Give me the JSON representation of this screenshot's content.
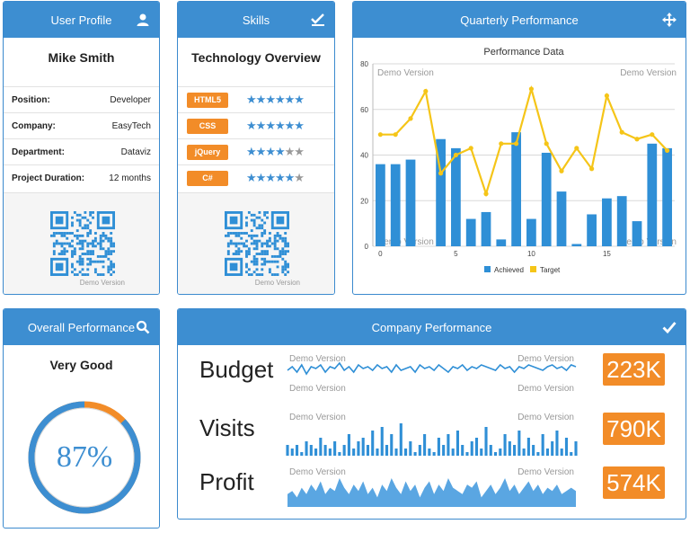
{
  "user_profile": {
    "title": "User Profile",
    "name": "Mike Smith",
    "rows": [
      {
        "key": "Position:",
        "value": "Developer"
      },
      {
        "key": "Company:",
        "value": "EasyTech"
      },
      {
        "key": "Department:",
        "value": "Dataviz"
      },
      {
        "key": "Project Duration:",
        "value": "12 months"
      }
    ],
    "demo_text": "Demo Version"
  },
  "skills": {
    "title": "Skills",
    "heading": "Technology Overview",
    "items": [
      {
        "label": "HTML5",
        "rating": 5.5
      },
      {
        "label": "CSS",
        "rating": 5.5
      },
      {
        "label": "jQuery",
        "rating": 4
      },
      {
        "label": "C#",
        "rating": 4.5
      }
    ],
    "demo_text": "Demo Version"
  },
  "quarterly": {
    "title": "Quarterly Performance",
    "chart_data": {
      "type": "bar",
      "title": "Performance Data",
      "x": [
        0,
        1,
        2,
        3,
        4,
        5,
        6,
        7,
        8,
        9,
        10,
        11,
        12,
        13,
        14,
        15,
        16,
        17,
        18,
        19
      ],
      "x_ticks": [
        0,
        5,
        10,
        15
      ],
      "ylim": [
        0,
        80
      ],
      "y_ticks": [
        0,
        20,
        40,
        60,
        80
      ],
      "grid": true,
      "legend": "bottom",
      "series": [
        {
          "name": "Achieved",
          "type": "bar",
          "color": "#2f8fd6",
          "values": [
            36,
            36,
            38,
            0,
            47,
            43,
            12,
            15,
            3,
            50,
            12,
            41,
            24,
            1,
            14,
            21,
            22,
            11,
            45,
            43
          ]
        },
        {
          "name": "Target",
          "type": "line",
          "color": "#f5c518",
          "values": [
            49,
            49,
            56,
            68,
            32,
            40,
            43,
            23,
            45,
            45,
            69,
            45,
            33,
            43,
            34,
            66,
            50,
            47,
            49,
            42
          ]
        }
      ],
      "watermark": "Demo Version"
    }
  },
  "overall": {
    "title": "Overall Performance",
    "rating_text": "Very Good",
    "percent_label": "87%",
    "percent": 0.87,
    "colors": {
      "fill": "#3d8ed1",
      "rest": "#f28c28"
    }
  },
  "company": {
    "title": "Company Performance",
    "demo_text": "Demo Version",
    "metrics": [
      {
        "label": "Budget",
        "value": "223K",
        "kind": "line",
        "values": [
          5,
          7,
          4,
          8,
          3,
          7,
          6,
          8,
          4,
          7,
          6,
          9,
          5,
          7,
          4,
          8,
          6,
          7,
          5,
          8,
          6,
          7,
          4,
          8,
          5,
          6,
          7,
          4,
          8,
          6,
          7,
          5,
          8,
          6,
          4,
          7,
          6,
          8,
          5,
          7,
          6,
          8,
          7,
          6,
          5,
          8,
          6,
          7,
          4,
          7,
          6,
          8,
          7,
          6,
          5,
          7,
          8,
          6,
          7,
          5,
          8,
          7
        ]
      },
      {
        "label": "Visits",
        "value": "790K",
        "kind": "bar",
        "values": [
          3,
          2,
          3,
          1,
          4,
          3,
          2,
          5,
          3,
          2,
          4,
          1,
          3,
          6,
          2,
          4,
          5,
          3,
          7,
          2,
          8,
          3,
          6,
          2,
          9,
          2,
          4,
          1,
          3,
          6,
          2,
          1,
          5,
          3,
          6,
          2,
          7,
          3,
          1,
          4,
          5,
          2,
          8,
          3,
          1,
          2,
          6,
          4,
          3,
          7,
          2,
          5,
          3,
          1,
          6,
          2,
          4,
          7,
          2,
          5,
          1,
          4
        ]
      },
      {
        "label": "Profit",
        "value": "574K",
        "kind": "area",
        "values": [
          4,
          5,
          3,
          6,
          4,
          7,
          5,
          8,
          4,
          6,
          5,
          9,
          6,
          4,
          7,
          5,
          8,
          4,
          6,
          3,
          7,
          5,
          9,
          6,
          4,
          8,
          5,
          7,
          3,
          6,
          8,
          4,
          7,
          5,
          9,
          6,
          5,
          4,
          7,
          6,
          8,
          3,
          5,
          7,
          4,
          6,
          9,
          5,
          7,
          4,
          6,
          8,
          5,
          7,
          4,
          6,
          5,
          7,
          4,
          5,
          6,
          5
        ]
      }
    ]
  },
  "icons": {
    "user_profile": "user-icon",
    "skills": "checklist-icon",
    "quarterly": "move-icon",
    "overall": "search-icon",
    "company": "checkmark-icon"
  }
}
